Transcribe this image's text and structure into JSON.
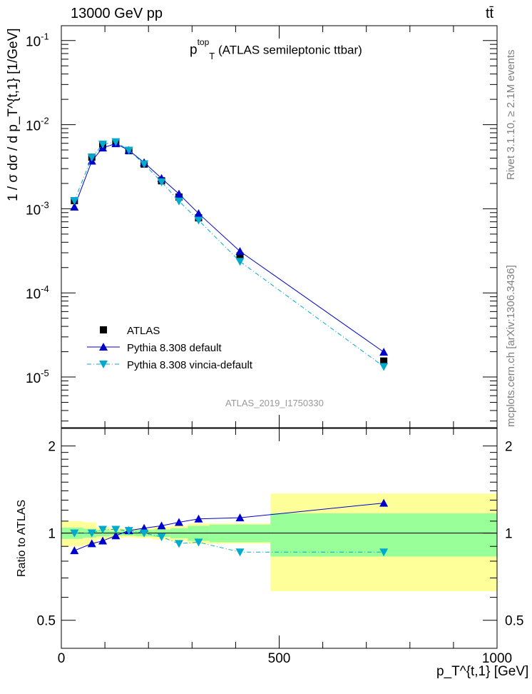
{
  "header": {
    "left": "13000 GeV pp",
    "right": "tt̄"
  },
  "observable": {
    "symbol": "p",
    "sup": "top",
    "sub": "T",
    "text": "(ATLAS semileptonic ttbar)"
  },
  "side_labels": {
    "rivet": "Rivet 3.1.10, ≥ 2.1M events",
    "mcplots": "mcplots.cern.ch [arXiv:1306.3436]"
  },
  "analysis_id": "ATLAS_2019_I1750330",
  "axes": {
    "y_top_label": "1 / σ dσ / d p_T^{t,1} [1/GeV]",
    "y_top_ticks": [
      "10^{-5}",
      "10^{-4}",
      "10^{-3}",
      "10^{-2}",
      "10^{-1}"
    ],
    "y_bottom_label": "Ratio to ATLAS",
    "y_bottom_ticks": [
      "0.5",
      "1",
      "2"
    ],
    "x_label": "p_T^{t,1} [GeV]",
    "x_ticks": [
      "0",
      "500",
      "1000"
    ]
  },
  "chart_data": {
    "type": "line",
    "x_range": [
      0,
      1000
    ],
    "y_range_top": [
      2.5e-06,
      0.15
    ],
    "y_scale_top": "log",
    "y_range_bottom": [
      0.4,
      2.3
    ],
    "y_scale_bottom": "log",
    "legend_position": "bottom-left",
    "bins": [
      [
        0,
        50
      ],
      [
        50,
        80
      ],
      [
        80,
        110
      ],
      [
        110,
        140
      ],
      [
        140,
        170
      ],
      [
        170,
        210
      ],
      [
        210,
        250
      ],
      [
        250,
        290
      ],
      [
        290,
        340
      ],
      [
        340,
        480
      ],
      [
        480,
        1000
      ]
    ],
    "x": [
      30,
      70,
      95,
      125,
      155,
      190,
      230,
      270,
      315,
      410,
      740
    ],
    "series": [
      {
        "name": "ATLAS",
        "color": "#000000",
        "marker": "square",
        "values": [
          0.00125,
          0.0041,
          0.0057,
          0.0061,
          0.0049,
          0.0034,
          0.00215,
          0.00138,
          0.00078,
          0.000275,
          1.55e-05
        ],
        "band_inner": [
          0.045,
          0.035,
          0.025,
          0.02,
          0.02,
          0.025,
          0.03,
          0.04,
          0.06,
          0.07,
          0.17
        ],
        "band_outer": [
          0.1,
          0.09,
          0.05,
          0.04,
          0.035,
          0.04,
          0.05,
          0.06,
          0.08,
          0.08,
          0.37
        ]
      },
      {
        "name": "Pythia 8.308 default",
        "color": "#0000cc",
        "marker": "triangle-up",
        "line": "solid",
        "values": [
          0.00105,
          0.0037,
          0.0053,
          0.00595,
          0.00495,
          0.00355,
          0.0023,
          0.0015,
          0.00088,
          0.000312,
          1.98e-05
        ],
        "ratio": [
          0.87,
          0.92,
          0.94,
          0.98,
          1.02,
          1.04,
          1.06,
          1.09,
          1.12,
          1.13,
          1.27
        ]
      },
      {
        "name": "Pythia 8.308 vincia-default",
        "color": "#00aacc",
        "marker": "triangle-down",
        "line": "dashdot",
        "values": [
          0.00125,
          0.0041,
          0.00585,
          0.00625,
          0.00495,
          0.0034,
          0.00208,
          0.00123,
          0.00073,
          0.000236,
          1.33e-05
        ],
        "ratio": [
          1.0,
          1.0,
          1.03,
          1.03,
          1.02,
          1.0,
          0.97,
          0.92,
          0.93,
          0.86,
          0.86
        ]
      }
    ]
  }
}
